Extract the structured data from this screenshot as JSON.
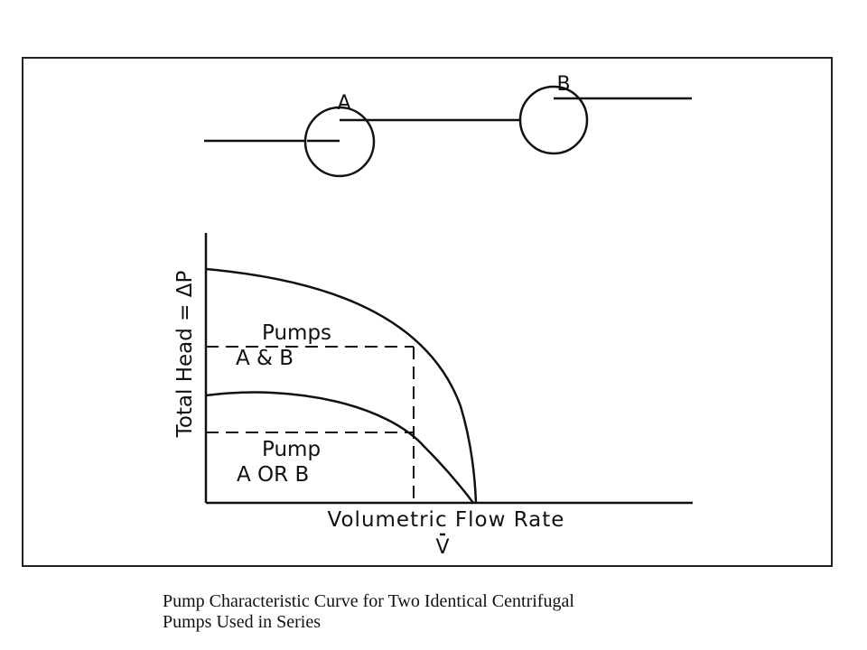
{
  "pumps": {
    "a_label": "A",
    "b_label": "B"
  },
  "chart": {
    "ylabel": "Total Head = ΔP",
    "xlabel": "Volumetric Flow Rate",
    "xsymbol": "V",
    "series_labels": {
      "combined_line1": "Pumps",
      "combined_line2": "A & B",
      "single_line1": "Pump",
      "single_line2": "A OR B"
    }
  },
  "caption": {
    "line1": "Pump Characteristic Curve for Two Identical Centrifugal",
    "line2": "Pumps Used in Series"
  },
  "colors": {
    "ink": "#111111",
    "frame": "#222222"
  }
}
